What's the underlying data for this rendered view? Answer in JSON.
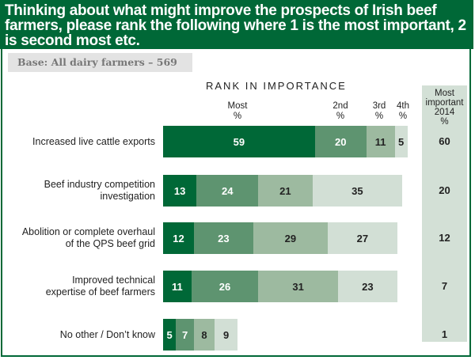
{
  "title": "Thinking about what might improve the prospects of Irish beef farmers, please rank the following where 1 is the most important, 2 is second most etc.",
  "base": "Base: All dairy farmers – 569",
  "chart_data": {
    "type": "bar",
    "orientation": "horizontal",
    "stacked": true,
    "title": "RANK IN IMPORTANCE",
    "categories": [
      "Increased live cattle exports",
      "Beef industry competition investigation",
      "Abolition or complete overhaul of the QPS beef grid",
      "Improved technical expertise of beef farmers",
      "No other / Don’t know"
    ],
    "series": [
      {
        "name": "Most\n%",
        "values": [
          59,
          13,
          12,
          11,
          5
        ],
        "color": "#006837"
      },
      {
        "name": "2nd\n%",
        "values": [
          20,
          24,
          23,
          26,
          7
        ],
        "color": "#5e9470"
      },
      {
        "name": "3rd\n%",
        "values": [
          11,
          21,
          29,
          31,
          8
        ],
        "color": "#9dbaa0"
      },
      {
        "name": "4th\n%",
        "values": [
          5,
          35,
          27,
          23,
          9
        ],
        "color": "#d2dfd5"
      }
    ],
    "column_header_labels": [
      "Most",
      "%",
      "2nd",
      "%",
      "3rd",
      "%",
      "4th",
      "%"
    ],
    "most_important_2014": {
      "header": [
        "Most",
        "important",
        "2014",
        "%"
      ],
      "values": [
        60,
        20,
        12,
        7,
        1
      ]
    }
  },
  "labels": [
    [
      "Increased live cattle exports"
    ],
    [
      "Beef industry competition",
      "investigation"
    ],
    [
      "Abolition or complete overhaul",
      "of the QPS beef grid"
    ],
    [
      "Improved technical",
      "expertise of beef farmers"
    ],
    [
      "No other / Don’t know"
    ]
  ]
}
